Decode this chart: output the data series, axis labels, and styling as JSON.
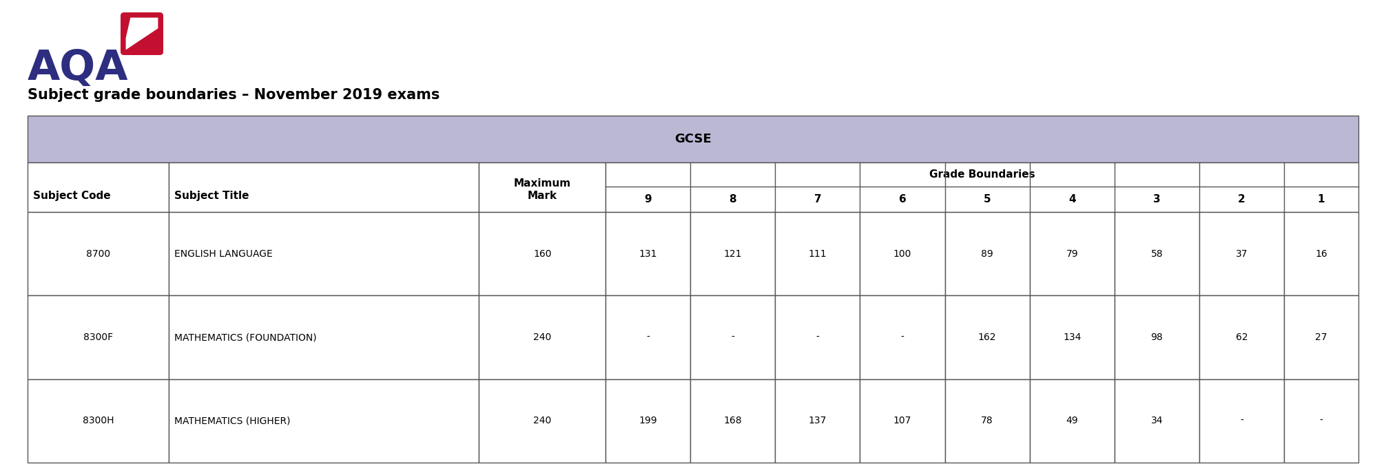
{
  "title": "Subject grade boundaries – November 2019 exams",
  "gcse_header": "GCSE",
  "grade_boundaries_label": "Grade Boundaries",
  "rows": [
    [
      "8700",
      "ENGLISH LANGUAGE",
      "160",
      "131",
      "121",
      "111",
      "100",
      "89",
      "79",
      "58",
      "37",
      "16"
    ],
    [
      "8300F",
      "MATHEMATICS (FOUNDATION)",
      "240",
      "-",
      "-",
      "-",
      "-",
      "162",
      "134",
      "98",
      "62",
      "27"
    ],
    [
      "8300H",
      "MATHEMATICS (HIGHER)",
      "240",
      "199",
      "168",
      "137",
      "107",
      "78",
      "49",
      "34",
      "-",
      "-"
    ]
  ],
  "grade_nums": [
    "9",
    "8",
    "7",
    "6",
    "5",
    "4",
    "3",
    "2",
    "1"
  ],
  "header_bg": "#bbb8d4",
  "white": "#ffffff",
  "border_color": "#555555",
  "text_color": "#000000",
  "aqa_blue": "#2d2e7f",
  "aqa_red": "#c41030",
  "fig_bg": "#ffffff",
  "title_fontsize": 15,
  "header_fontsize": 11,
  "cell_fontsize": 10
}
